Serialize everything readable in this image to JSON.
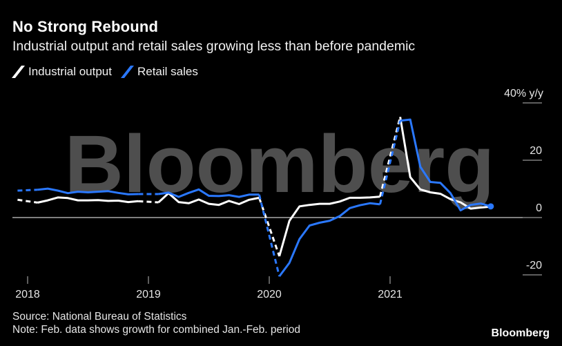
{
  "title": "No Strong Rebound",
  "subtitle": "Industrial output and retail sales growing less than before pandemic",
  "source": "Source: National Bureau of Statistics",
  "note": "Note: Feb. data shows growth for combined Jan.-Feb. period",
  "brand": "Bloomberg",
  "watermark": "Bloomberg",
  "chart_data": {
    "type": "line",
    "title": "No Strong Rebound",
    "subtitle": "Industrial output and retail sales growing less than before pandemic",
    "xlabel": "",
    "ylabel": "y/y",
    "y_unit_label": "y/y",
    "ylim": [
      -22,
      40
    ],
    "y_ticks": [
      {
        "value": 40,
        "label": "40%"
      },
      {
        "value": 20,
        "label": "20"
      },
      {
        "value": 0,
        "label": "0"
      },
      {
        "value": -20,
        "label": "-20"
      }
    ],
    "x_ticks": [
      "2018",
      "2019",
      "2020",
      "2021"
    ],
    "x_tick_dates": [
      "2018-01",
      "2019-01",
      "2020-01",
      "2021-01"
    ],
    "grid": false,
    "legend_placement": "top-left",
    "series": [
      {
        "name": "Industrial output",
        "color": "#ffffff",
        "points": [
          [
            "2017-12",
            6.2
          ],
          [
            "2018-02",
            5.2
          ],
          [
            "2018-03",
            6.0
          ],
          [
            "2018-04",
            7.0
          ],
          [
            "2018-05",
            6.8
          ],
          [
            "2018-06",
            6.0
          ],
          [
            "2018-07",
            6.0
          ],
          [
            "2018-08",
            6.1
          ],
          [
            "2018-09",
            5.8
          ],
          [
            "2018-10",
            5.9
          ],
          [
            "2018-11",
            5.4
          ],
          [
            "2018-12",
            5.7
          ],
          [
            "2019-02",
            5.3
          ],
          [
            "2019-03",
            8.5
          ],
          [
            "2019-04",
            5.4
          ],
          [
            "2019-05",
            5.0
          ],
          [
            "2019-06",
            6.3
          ],
          [
            "2019-07",
            4.8
          ],
          [
            "2019-08",
            4.4
          ],
          [
            "2019-09",
            5.8
          ],
          [
            "2019-10",
            4.7
          ],
          [
            "2019-11",
            6.2
          ],
          [
            "2019-12",
            6.9
          ],
          [
            "2020-02",
            -13.5
          ],
          [
            "2020-03",
            -1.1
          ],
          [
            "2020-04",
            3.9
          ],
          [
            "2020-05",
            4.4
          ],
          [
            "2020-06",
            4.8
          ],
          [
            "2020-07",
            4.8
          ],
          [
            "2020-08",
            5.6
          ],
          [
            "2020-09",
            6.9
          ],
          [
            "2020-10",
            6.9
          ],
          [
            "2020-11",
            7.0
          ],
          [
            "2020-12",
            7.3
          ],
          [
            "2021-02",
            35.1
          ],
          [
            "2021-03",
            14.1
          ],
          [
            "2021-04",
            9.8
          ],
          [
            "2021-05",
            8.8
          ],
          [
            "2021-06",
            8.3
          ],
          [
            "2021-07",
            6.4
          ],
          [
            "2021-08",
            5.3
          ],
          [
            "2021-09",
            3.1
          ],
          [
            "2021-10",
            3.5
          ],
          [
            "2021-11",
            3.8
          ]
        ]
      },
      {
        "name": "Retail sales",
        "color": "#2a78ff",
        "points": [
          [
            "2017-12",
            9.4
          ],
          [
            "2018-02",
            9.7
          ],
          [
            "2018-03",
            10.1
          ],
          [
            "2018-04",
            9.4
          ],
          [
            "2018-05",
            8.5
          ],
          [
            "2018-06",
            9.0
          ],
          [
            "2018-07",
            8.8
          ],
          [
            "2018-08",
            9.0
          ],
          [
            "2018-09",
            9.2
          ],
          [
            "2018-10",
            8.6
          ],
          [
            "2018-11",
            8.1
          ],
          [
            "2018-12",
            8.2
          ],
          [
            "2019-02",
            8.2
          ],
          [
            "2019-03",
            8.7
          ],
          [
            "2019-04",
            7.2
          ],
          [
            "2019-05",
            8.6
          ],
          [
            "2019-06",
            9.8
          ],
          [
            "2019-07",
            7.6
          ],
          [
            "2019-08",
            7.5
          ],
          [
            "2019-09",
            7.8
          ],
          [
            "2019-10",
            7.2
          ],
          [
            "2019-11",
            8.0
          ],
          [
            "2019-12",
            8.0
          ],
          [
            "2020-02",
            -20.5
          ],
          [
            "2020-03",
            -15.8
          ],
          [
            "2020-04",
            -7.5
          ],
          [
            "2020-05",
            -2.8
          ],
          [
            "2020-06",
            -1.8
          ],
          [
            "2020-07",
            -1.1
          ],
          [
            "2020-08",
            0.5
          ],
          [
            "2020-09",
            3.3
          ],
          [
            "2020-10",
            4.3
          ],
          [
            "2020-11",
            5.0
          ],
          [
            "2020-12",
            4.6
          ],
          [
            "2021-02",
            33.8
          ],
          [
            "2021-03",
            34.2
          ],
          [
            "2021-04",
            17.7
          ],
          [
            "2021-05",
            12.4
          ],
          [
            "2021-06",
            12.1
          ],
          [
            "2021-07",
            8.5
          ],
          [
            "2021-08",
            2.5
          ],
          [
            "2021-09",
            4.4
          ],
          [
            "2021-10",
            4.9
          ],
          [
            "2021-11",
            3.9
          ]
        ]
      }
    ]
  }
}
